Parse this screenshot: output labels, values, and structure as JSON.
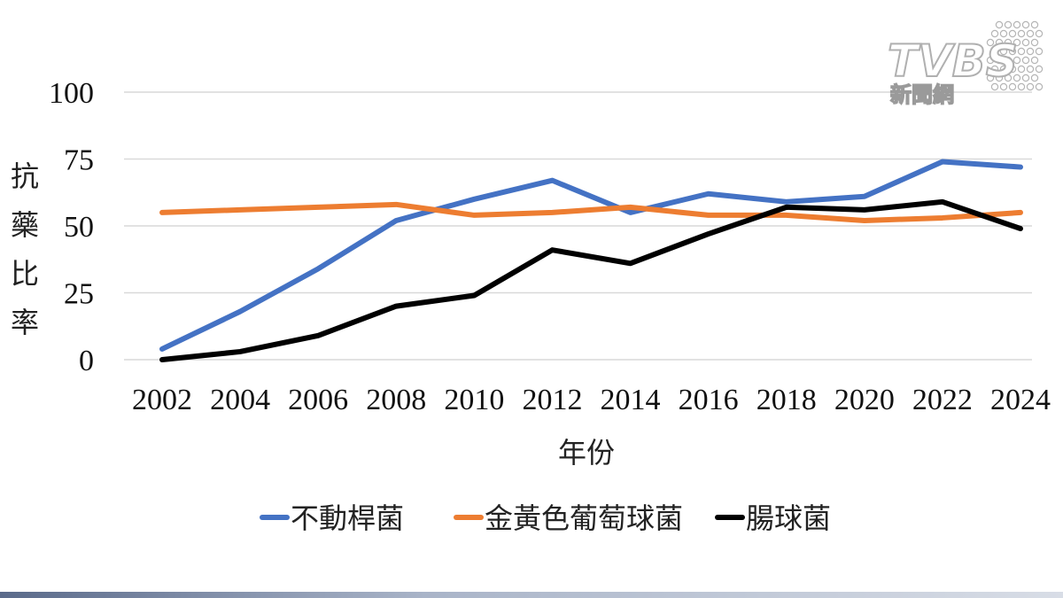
{
  "logo": {
    "brand": "TVBS",
    "subtitle": "新聞網"
  },
  "chart_data": {
    "type": "line",
    "title": "",
    "xlabel": "年份",
    "ylabel": "抗藥比率",
    "ylim": [
      0,
      100
    ],
    "yticks": [
      0,
      25,
      50,
      75,
      100
    ],
    "x": [
      2002,
      2004,
      2006,
      2008,
      2010,
      2012,
      2014,
      2016,
      2018,
      2020,
      2022,
      2024
    ],
    "grid": true,
    "legend": "bottom",
    "series": [
      {
        "name": "不動桿菌",
        "color": "#4472c4",
        "values": [
          4,
          18,
          34,
          52,
          60,
          67,
          55,
          62,
          59,
          61,
          74,
          72
        ]
      },
      {
        "name": "金黃色葡萄球菌",
        "color": "#ed7d31",
        "values": [
          55,
          56,
          57,
          58,
          54,
          55,
          57,
          54,
          54,
          52,
          53,
          55
        ]
      },
      {
        "name": "腸球菌",
        "color": "#000000",
        "values": [
          0,
          3,
          9,
          20,
          24,
          41,
          36,
          47,
          57,
          56,
          59,
          49
        ]
      }
    ]
  }
}
